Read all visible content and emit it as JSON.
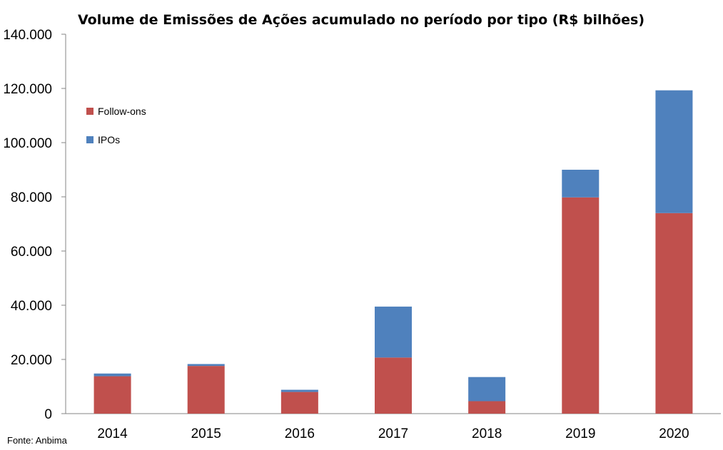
{
  "chart_data": {
    "type": "bar",
    "stacked": true,
    "title": "Volume de Emissões de Ações acumulado no período por tipo (R$ bilhões)",
    "xlabel": "",
    "ylabel": "",
    "categories": [
      "2014",
      "2015",
      "2016",
      "2017",
      "2018",
      "2019",
      "2020"
    ],
    "series": [
      {
        "name": "Follow-ons",
        "color": "#c0504d",
        "values": [
          13.8,
          17.6,
          8.0,
          20.7,
          4.6,
          79.8,
          74.0
        ]
      },
      {
        "name": "IPOs",
        "color": "#4f81bd",
        "values": [
          1.0,
          0.7,
          0.8,
          18.8,
          8.9,
          10.2,
          45.3
        ]
      }
    ],
    "ylim": [
      0,
      140
    ],
    "yticks": [
      0,
      20,
      40,
      60,
      80,
      100,
      120,
      140
    ],
    "ytick_labels": [
      "0",
      "20.000",
      "40.000",
      "60.000",
      "80.000",
      "100.000",
      "120.000",
      "140.000"
    ],
    "grid": false,
    "legend": "top-left",
    "source": "Fonte: Anbima"
  }
}
